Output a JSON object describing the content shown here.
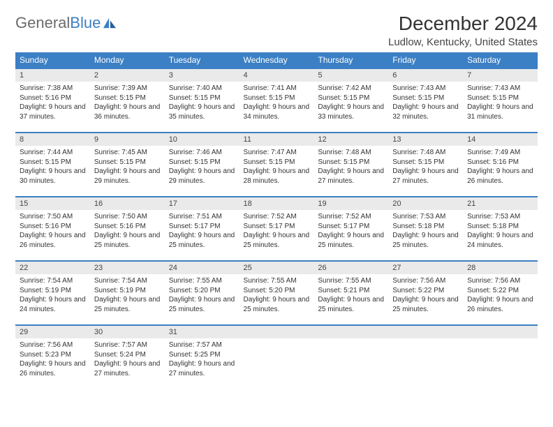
{
  "logo": {
    "part1": "General",
    "part2": "Blue"
  },
  "title": "December 2024",
  "location": "Ludlow, Kentucky, United States",
  "weekday_header": {
    "bg_color": "#3b7fc4",
    "text_color": "#ffffff",
    "names": [
      "Sunday",
      "Monday",
      "Tuesday",
      "Wednesday",
      "Thursday",
      "Friday",
      "Saturday"
    ]
  },
  "daynum_bg": "#eaeaea",
  "row_border_color": "#3b7fc4",
  "days": [
    {
      "n": "1",
      "sunrise": "7:38 AM",
      "sunset": "5:16 PM",
      "day_h": 9,
      "day_m": 37
    },
    {
      "n": "2",
      "sunrise": "7:39 AM",
      "sunset": "5:15 PM",
      "day_h": 9,
      "day_m": 36
    },
    {
      "n": "3",
      "sunrise": "7:40 AM",
      "sunset": "5:15 PM",
      "day_h": 9,
      "day_m": 35
    },
    {
      "n": "4",
      "sunrise": "7:41 AM",
      "sunset": "5:15 PM",
      "day_h": 9,
      "day_m": 34
    },
    {
      "n": "5",
      "sunrise": "7:42 AM",
      "sunset": "5:15 PM",
      "day_h": 9,
      "day_m": 33
    },
    {
      "n": "6",
      "sunrise": "7:43 AM",
      "sunset": "5:15 PM",
      "day_h": 9,
      "day_m": 32
    },
    {
      "n": "7",
      "sunrise": "7:43 AM",
      "sunset": "5:15 PM",
      "day_h": 9,
      "day_m": 31
    },
    {
      "n": "8",
      "sunrise": "7:44 AM",
      "sunset": "5:15 PM",
      "day_h": 9,
      "day_m": 30
    },
    {
      "n": "9",
      "sunrise": "7:45 AM",
      "sunset": "5:15 PM",
      "day_h": 9,
      "day_m": 29
    },
    {
      "n": "10",
      "sunrise": "7:46 AM",
      "sunset": "5:15 PM",
      "day_h": 9,
      "day_m": 29
    },
    {
      "n": "11",
      "sunrise": "7:47 AM",
      "sunset": "5:15 PM",
      "day_h": 9,
      "day_m": 28
    },
    {
      "n": "12",
      "sunrise": "7:48 AM",
      "sunset": "5:15 PM",
      "day_h": 9,
      "day_m": 27
    },
    {
      "n": "13",
      "sunrise": "7:48 AM",
      "sunset": "5:15 PM",
      "day_h": 9,
      "day_m": 27
    },
    {
      "n": "14",
      "sunrise": "7:49 AM",
      "sunset": "5:16 PM",
      "day_h": 9,
      "day_m": 26
    },
    {
      "n": "15",
      "sunrise": "7:50 AM",
      "sunset": "5:16 PM",
      "day_h": 9,
      "day_m": 26
    },
    {
      "n": "16",
      "sunrise": "7:50 AM",
      "sunset": "5:16 PM",
      "day_h": 9,
      "day_m": 25
    },
    {
      "n": "17",
      "sunrise": "7:51 AM",
      "sunset": "5:17 PM",
      "day_h": 9,
      "day_m": 25
    },
    {
      "n": "18",
      "sunrise": "7:52 AM",
      "sunset": "5:17 PM",
      "day_h": 9,
      "day_m": 25
    },
    {
      "n": "19",
      "sunrise": "7:52 AM",
      "sunset": "5:17 PM",
      "day_h": 9,
      "day_m": 25
    },
    {
      "n": "20",
      "sunrise": "7:53 AM",
      "sunset": "5:18 PM",
      "day_h": 9,
      "day_m": 25
    },
    {
      "n": "21",
      "sunrise": "7:53 AM",
      "sunset": "5:18 PM",
      "day_h": 9,
      "day_m": 24
    },
    {
      "n": "22",
      "sunrise": "7:54 AM",
      "sunset": "5:19 PM",
      "day_h": 9,
      "day_m": 24
    },
    {
      "n": "23",
      "sunrise": "7:54 AM",
      "sunset": "5:19 PM",
      "day_h": 9,
      "day_m": 25
    },
    {
      "n": "24",
      "sunrise": "7:55 AM",
      "sunset": "5:20 PM",
      "day_h": 9,
      "day_m": 25
    },
    {
      "n": "25",
      "sunrise": "7:55 AM",
      "sunset": "5:20 PM",
      "day_h": 9,
      "day_m": 25
    },
    {
      "n": "26",
      "sunrise": "7:55 AM",
      "sunset": "5:21 PM",
      "day_h": 9,
      "day_m": 25
    },
    {
      "n": "27",
      "sunrise": "7:56 AM",
      "sunset": "5:22 PM",
      "day_h": 9,
      "day_m": 25
    },
    {
      "n": "28",
      "sunrise": "7:56 AM",
      "sunset": "5:22 PM",
      "day_h": 9,
      "day_m": 26
    },
    {
      "n": "29",
      "sunrise": "7:56 AM",
      "sunset": "5:23 PM",
      "day_h": 9,
      "day_m": 26
    },
    {
      "n": "30",
      "sunrise": "7:57 AM",
      "sunset": "5:24 PM",
      "day_h": 9,
      "day_m": 27
    },
    {
      "n": "31",
      "sunrise": "7:57 AM",
      "sunset": "5:25 PM",
      "day_h": 9,
      "day_m": 27
    }
  ],
  "labels": {
    "sunrise": "Sunrise: ",
    "sunset": "Sunset: ",
    "daylight": "Daylight: ",
    "hours_and": " hours and ",
    "minutes": " minutes."
  },
  "trailing_empty": 4
}
